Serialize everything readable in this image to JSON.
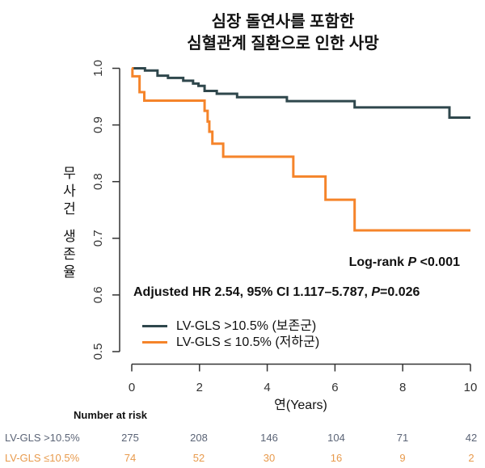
{
  "chart_data": {
    "type": "line",
    "subtype": "kaplan-meier-step",
    "title_lines": [
      "심장 돌연사를 포함한",
      "심혈관계 질환으로 인한 사망"
    ],
    "xlabel": "연(Years)",
    "ylabel": "무사건 생존율",
    "xlim": [
      0,
      10
    ],
    "ylim": [
      0.5,
      1.0
    ],
    "xticks": [
      "0",
      "2",
      "4",
      "6",
      "8",
      "10"
    ],
    "yticks": [
      "0.5",
      "0.6",
      "0.7",
      "0.8",
      "0.9",
      "1.0"
    ],
    "grid": false,
    "legend_position": "bottom-left",
    "series": [
      {
        "name": "LV-GLS >10.5% (보존군)",
        "color": "#2f474c",
        "x": [
          0,
          0.39,
          0.76,
          1.07,
          1.52,
          1.81,
          1.97,
          2.15,
          2.51,
          3.11,
          4.58,
          6.58,
          9.38,
          10
        ],
        "y": [
          1.0,
          0.996,
          0.987,
          0.983,
          0.978,
          0.973,
          0.969,
          0.96,
          0.955,
          0.949,
          0.942,
          0.931,
          0.913,
          0.913
        ]
      },
      {
        "name": "LV-GLS ≤ 10.5% (저하군)",
        "color": "#f5842a",
        "x": [
          0,
          0.02,
          0.23,
          0.37,
          2.15,
          2.24,
          2.29,
          2.38,
          2.7,
          4.77,
          5.72,
          6.58,
          10
        ],
        "y": [
          1.0,
          0.986,
          0.958,
          0.943,
          0.925,
          0.906,
          0.888,
          0.867,
          0.844,
          0.809,
          0.768,
          0.714,
          0.714
        ]
      }
    ],
    "annotations": {
      "logrank_prefix": "Log-rank ",
      "logrank_p": "P",
      "logrank_value": " <0.001",
      "hr_prefix": "Adjusted HR 2.54, 95% CI 1.117–5.787, ",
      "hr_p": "P",
      "hr_value": "=0.026"
    },
    "risk_table": {
      "title": "Number at risk",
      "rows": [
        {
          "label": "LV-GLS >10.5%",
          "color": "#5b6476",
          "values": [
            "275",
            "208",
            "146",
            "104",
            "71",
            "42"
          ]
        },
        {
          "label": "LV-GLS ≤10.5%",
          "color": "#e89a4c",
          "values": [
            "74",
            "52",
            "30",
            "16",
            "9",
            "2"
          ]
        }
      ]
    }
  }
}
